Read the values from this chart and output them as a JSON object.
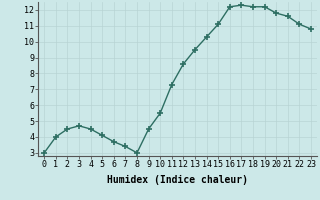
{
  "x": [
    0,
    1,
    2,
    3,
    4,
    5,
    6,
    7,
    8,
    9,
    10,
    11,
    12,
    13,
    14,
    15,
    16,
    17,
    18,
    19,
    20,
    21,
    22,
    23
  ],
  "y": [
    3.0,
    4.0,
    4.5,
    4.7,
    4.5,
    4.1,
    3.7,
    3.4,
    3.0,
    4.5,
    5.5,
    7.3,
    8.6,
    9.5,
    10.3,
    11.1,
    12.2,
    12.3,
    12.2,
    12.2,
    11.8,
    11.6,
    11.1,
    10.8
  ],
  "xlabel": "Humidex (Indice chaleur)",
  "ylim_min": 2.8,
  "ylim_max": 12.5,
  "xlim_min": -0.5,
  "xlim_max": 23.5,
  "yticks": [
    3,
    4,
    5,
    6,
    7,
    8,
    9,
    10,
    11,
    12
  ],
  "xticks": [
    0,
    1,
    2,
    3,
    4,
    5,
    6,
    7,
    8,
    9,
    10,
    11,
    12,
    13,
    14,
    15,
    16,
    17,
    18,
    19,
    20,
    21,
    22,
    23
  ],
  "line_color": "#2d6e62",
  "marker": "+",
  "marker_size": 4.0,
  "background_color": "#cce8e8",
  "grid_color": "#b8d4d4",
  "xlabel_fontsize": 7,
  "tick_fontsize": 6,
  "linewidth": 1.0
}
